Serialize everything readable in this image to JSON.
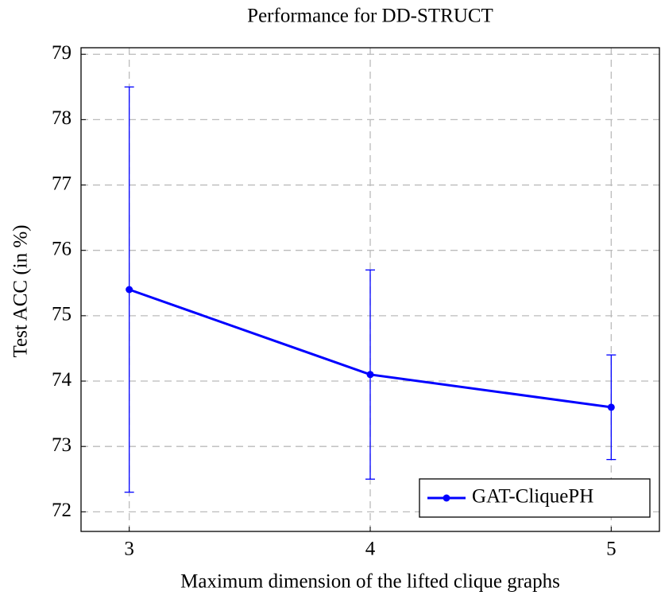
{
  "chart_data": {
    "type": "line",
    "title": "Performance for DD-STRUCT",
    "x_label": "Maximum dimension of the lifted clique graphs",
    "y_label": "Test ACC (in %)",
    "x": [
      3,
      4,
      5
    ],
    "series": [
      {
        "name": "GAT-CliquePH",
        "color": "#0000ff",
        "values": [
          75.4,
          74.1,
          73.6
        ],
        "errors": [
          3.1,
          1.6,
          0.8
        ]
      }
    ],
    "xlim": [
      2.8,
      5.2
    ],
    "xticks": [
      3,
      4,
      5
    ],
    "ylim": [
      71.7,
      79.1
    ],
    "yticks": [
      72,
      73,
      74,
      75,
      76,
      77,
      78,
      79
    ],
    "grid": true,
    "legend_position": "lower right"
  }
}
